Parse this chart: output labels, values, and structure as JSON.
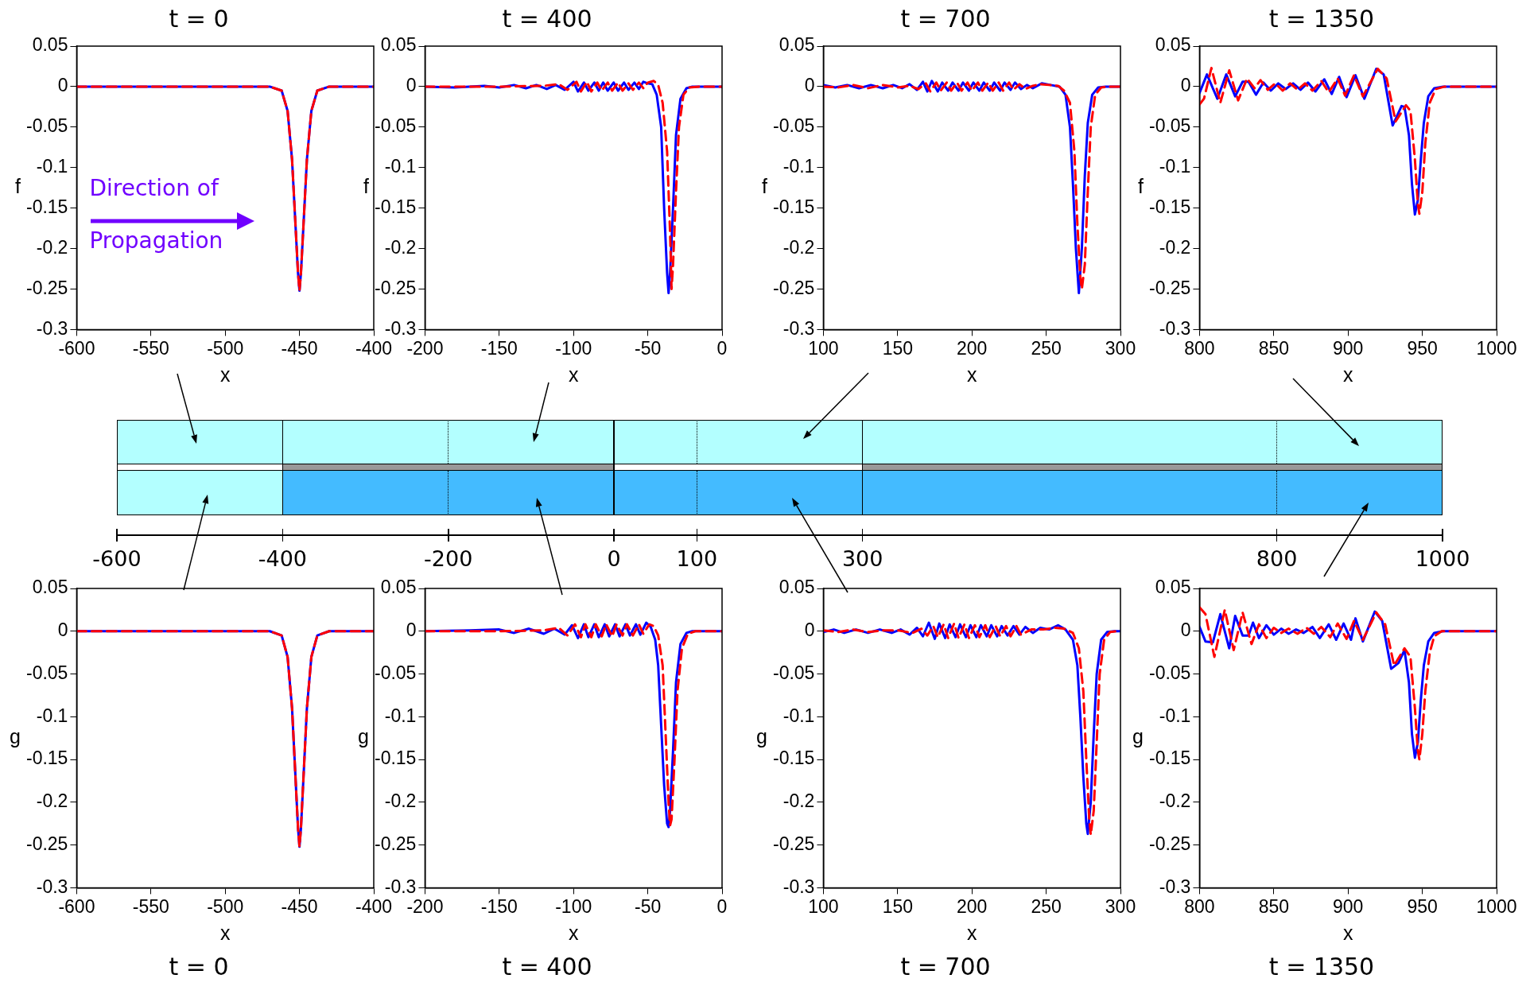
{
  "chart_data": [
    {
      "type": "line",
      "title": "t = 0",
      "xlabel": "x",
      "ylabel": "f",
      "xlim": [
        -600,
        -400
      ],
      "xticks": [
        -600,
        -550,
        -500,
        -450,
        -400
      ],
      "ylim": [
        -0.3,
        0.05
      ],
      "yticks": [
        -0.3,
        -0.25,
        -0.2,
        -0.15,
        -0.1,
        -0.05,
        0,
        0.05
      ],
      "grid": false,
      "annotations": [
        "Direction of",
        "Propagation"
      ],
      "series": [
        {
          "color": "#0000ff",
          "line_style": "solid",
          "x": [
            -600,
            -470,
            -462,
            -458,
            -455,
            -453,
            -451,
            -450,
            -449,
            -447,
            -445,
            -442,
            -438,
            -430,
            -400
          ],
          "values": [
            0,
            0,
            -0.005,
            -0.03,
            -0.09,
            -0.16,
            -0.23,
            -0.252,
            -0.23,
            -0.16,
            -0.09,
            -0.03,
            -0.005,
            0,
            0
          ]
        },
        {
          "color": "#ff0000",
          "line_style": "dashed",
          "x": [
            -600,
            -470,
            -462,
            -458,
            -455,
            -453,
            -451,
            -450,
            -449,
            -447,
            -445,
            -442,
            -438,
            -430,
            -400
          ],
          "values": [
            0,
            0,
            -0.005,
            -0.03,
            -0.09,
            -0.16,
            -0.23,
            -0.252,
            -0.23,
            -0.16,
            -0.09,
            -0.03,
            -0.005,
            0,
            0
          ]
        }
      ]
    },
    {
      "type": "line",
      "title": "t = 400",
      "xlabel": "x",
      "ylabel": "f",
      "xlim": [
        -200,
        0
      ],
      "xticks": [
        -200,
        -150,
        -100,
        -50,
        0
      ],
      "ylim": [
        -0.3,
        0.05
      ],
      "yticks": [
        -0.3,
        -0.25,
        -0.2,
        -0.15,
        -0.1,
        -0.05,
        0,
        0.05
      ],
      "grid": false,
      "series": [
        {
          "color": "#0000ff",
          "line_style": "solid",
          "x": [
            -200,
            -180,
            -160,
            -150,
            -140,
            -132,
            -125,
            -118,
            -112,
            -106,
            -100,
            -97,
            -93,
            -90,
            -86,
            -83,
            -80,
            -77,
            -73,
            -70,
            -66,
            -63,
            -59,
            -56,
            -53,
            -50,
            -47,
            -44,
            -41,
            -39,
            -37,
            -36,
            -35,
            -33,
            -31,
            -28,
            -24,
            -20,
            0
          ],
          "values": [
            0,
            -0.001,
            0.001,
            -0.001,
            0.002,
            -0.002,
            0.002,
            -0.003,
            0.002,
            -0.004,
            0.006,
            -0.006,
            0.005,
            -0.005,
            0.005,
            -0.005,
            0.005,
            -0.005,
            0.005,
            -0.005,
            0.005,
            -0.004,
            0.005,
            -0.003,
            0.006,
            0.004,
            0.003,
            -0.01,
            -0.05,
            -0.15,
            -0.23,
            -0.255,
            -0.23,
            -0.15,
            -0.06,
            -0.015,
            -0.002,
            0,
            0
          ]
        },
        {
          "color": "#ff0000",
          "line_style": "dashed",
          "x": [
            -200,
            -150,
            -120,
            -110,
            -104,
            -98,
            -95,
            -91,
            -88,
            -84,
            -81,
            -77,
            -74,
            -70,
            -67,
            -63,
            -60,
            -56,
            -53,
            -50,
            -46,
            -43,
            -40,
            -37,
            -35,
            -34,
            -33,
            -31,
            -29,
            -26,
            -22,
            -15,
            0
          ],
          "values": [
            0,
            0,
            0.001,
            0.003,
            -0.004,
            0.006,
            -0.006,
            0.006,
            -0.006,
            0.005,
            -0.005,
            0.005,
            -0.005,
            0.005,
            -0.005,
            0.004,
            -0.004,
            0.005,
            -0.002,
            0.005,
            0.007,
            0.002,
            -0.02,
            -0.08,
            -0.18,
            -0.25,
            -0.22,
            -0.13,
            -0.05,
            -0.01,
            -0.001,
            0,
            0
          ]
        }
      ]
    },
    {
      "type": "line",
      "title": "t = 700",
      "xlabel": "x",
      "ylabel": "f",
      "xlim": [
        100,
        300
      ],
      "xticks": [
        100,
        150,
        200,
        250,
        300
      ],
      "ylim": [
        -0.3,
        0.05
      ],
      "yticks": [
        -0.3,
        -0.25,
        -0.2,
        -0.15,
        -0.1,
        -0.05,
        0,
        0.05
      ],
      "grid": false,
      "series": [
        {
          "color": "#0000ff",
          "line_style": "solid",
          "x": [
            100,
            108,
            116,
            124,
            132,
            140,
            147,
            153,
            158,
            163,
            167,
            170,
            173,
            177,
            180,
            184,
            187,
            191,
            194,
            198,
            201,
            205,
            208,
            212,
            215,
            219,
            222,
            226,
            229,
            233,
            237,
            241,
            247,
            253,
            259,
            263,
            266,
            268,
            270,
            272,
            274,
            276,
            278,
            281,
            285,
            290,
            300
          ],
          "values": [
            0.002,
            -0.001,
            0.002,
            -0.002,
            0.002,
            -0.002,
            0.002,
            -0.002,
            0.003,
            -0.004,
            0.006,
            -0.006,
            0.007,
            -0.006,
            0.005,
            -0.005,
            0.005,
            -0.005,
            0.005,
            -0.005,
            0.005,
            -0.005,
            0.005,
            -0.005,
            0.005,
            -0.005,
            0.005,
            -0.004,
            0.005,
            -0.003,
            0.002,
            -0.002,
            0.004,
            0.002,
            0,
            -0.01,
            -0.05,
            -0.12,
            -0.2,
            -0.255,
            -0.2,
            -0.11,
            -0.045,
            -0.01,
            -0.001,
            0,
            0
          ]
        },
        {
          "color": "#ff0000",
          "line_style": "dashed",
          "x": [
            100,
            110,
            120,
            130,
            140,
            150,
            158,
            164,
            169,
            172,
            176,
            179,
            183,
            186,
            190,
            193,
            197,
            200,
            204,
            207,
            211,
            214,
            218,
            221,
            225,
            228,
            232,
            236,
            241,
            246,
            252,
            258,
            262,
            266,
            269,
            271,
            273,
            274,
            276,
            278,
            280,
            283,
            287,
            292,
            300
          ],
          "values": [
            0,
            -0.001,
            0.002,
            -0.002,
            0.002,
            -0.001,
            0.001,
            -0.003,
            0.004,
            -0.006,
            0.005,
            -0.005,
            0.005,
            -0.005,
            0.005,
            -0.005,
            0.005,
            -0.005,
            0.005,
            -0.005,
            0.005,
            -0.005,
            0.005,
            -0.005,
            0.005,
            -0.004,
            0.003,
            -0.003,
            0.001,
            0.003,
            0.002,
            0.001,
            -0.005,
            -0.02,
            -0.08,
            -0.17,
            -0.235,
            -0.25,
            -0.22,
            -0.13,
            -0.05,
            -0.01,
            -0.001,
            0,
            0
          ]
        }
      ]
    },
    {
      "type": "line",
      "title": "t = 1350",
      "xlabel": "x",
      "ylabel": "f",
      "xlim": [
        800,
        1000
      ],
      "xticks": [
        800,
        850,
        900,
        950,
        1000
      ],
      "ylim": [
        -0.3,
        0.05
      ],
      "yticks": [
        -0.3,
        -0.25,
        -0.2,
        -0.15,
        -0.1,
        -0.05,
        0,
        0.05
      ],
      "grid": false,
      "series": [
        {
          "color": "#0000ff",
          "line_style": "solid",
          "x": [
            800,
            805,
            812,
            818,
            824,
            829,
            833,
            838,
            843,
            848,
            853,
            858,
            863,
            868,
            873,
            878,
            884,
            889,
            894,
            899,
            905,
            911,
            919,
            924,
            930,
            936,
            938,
            941,
            943,
            945,
            947,
            949,
            951,
            954,
            958,
            964,
            1000
          ],
          "values": [
            -0.008,
            0.015,
            -0.015,
            0.015,
            -0.012,
            0.006,
            0.006,
            -0.01,
            0.005,
            -0.005,
            0.004,
            -0.003,
            0.004,
            -0.004,
            0.005,
            -0.006,
            0.009,
            -0.009,
            0.012,
            -0.013,
            0.014,
            -0.015,
            0.022,
            0.015,
            -0.048,
            -0.024,
            -0.025,
            -0.06,
            -0.12,
            -0.158,
            -0.14,
            -0.09,
            -0.045,
            -0.012,
            -0.002,
            0,
            0
          ]
        },
        {
          "color": "#ff0000",
          "line_style": "dashed",
          "x": [
            800,
            803,
            808,
            814,
            820,
            826,
            832,
            837,
            841,
            846,
            851,
            856,
            861,
            866,
            871,
            876,
            882,
            887,
            893,
            898,
            904,
            910,
            920,
            926,
            932,
            939,
            942,
            945,
            947,
            948,
            950,
            952,
            955,
            959,
            965,
            1000
          ],
          "values": [
            -0.022,
            -0.015,
            0.023,
            -0.02,
            0.02,
            -0.017,
            0.01,
            -0.002,
            0.008,
            -0.004,
            0.004,
            -0.005,
            0.004,
            -0.004,
            0.004,
            -0.005,
            0.007,
            -0.007,
            0.01,
            -0.011,
            0.014,
            -0.012,
            0.022,
            0.01,
            -0.043,
            -0.023,
            -0.03,
            -0.09,
            -0.145,
            -0.157,
            -0.13,
            -0.07,
            -0.02,
            -0.003,
            0,
            0
          ]
        }
      ]
    },
    {
      "type": "other",
      "annotations": [
        "-600",
        "-400",
        "-200",
        "0",
        "100",
        "300",
        "800",
        "1000"
      ]
    },
    {
      "type": "line",
      "title": "t = 0",
      "xlabel": "x",
      "ylabel": "g",
      "xlim": [
        -600,
        -400
      ],
      "xticks": [
        -600,
        -550,
        -500,
        -450,
        -400
      ],
      "ylim": [
        -0.3,
        0.05
      ],
      "yticks": [
        -0.3,
        -0.25,
        -0.2,
        -0.15,
        -0.1,
        -0.05,
        0,
        0.05
      ],
      "grid": false,
      "series": [
        {
          "color": "#0000ff",
          "line_style": "solid",
          "x": [
            -600,
            -470,
            -462,
            -458,
            -455,
            -453,
            -451,
            -450,
            -449,
            -447,
            -445,
            -442,
            -438,
            -430,
            -400
          ],
          "values": [
            0,
            0,
            -0.005,
            -0.03,
            -0.09,
            -0.16,
            -0.23,
            -0.252,
            -0.23,
            -0.16,
            -0.09,
            -0.03,
            -0.005,
            0,
            0
          ]
        },
        {
          "color": "#ff0000",
          "line_style": "dashed",
          "x": [
            -600,
            -470,
            -462,
            -458,
            -455,
            -453,
            -451,
            -450,
            -449,
            -447,
            -445,
            -442,
            -438,
            -430,
            -400
          ],
          "values": [
            0,
            0,
            -0.005,
            -0.03,
            -0.09,
            -0.16,
            -0.23,
            -0.252,
            -0.23,
            -0.16,
            -0.09,
            -0.03,
            -0.005,
            0,
            0
          ]
        }
      ]
    },
    {
      "type": "line",
      "title": "t = 400",
      "xlabel": "x",
      "ylabel": "g",
      "xlim": [
        -200,
        0
      ],
      "xticks": [
        -200,
        -150,
        -100,
        -50,
        0
      ],
      "ylim": [
        -0.3,
        0.05
      ],
      "yticks": [
        -0.3,
        -0.25,
        -0.2,
        -0.15,
        -0.1,
        -0.05,
        0,
        0.05
      ],
      "grid": false,
      "series": [
        {
          "color": "#0000ff",
          "line_style": "solid",
          "x": [
            -200,
            -170,
            -150,
            -140,
            -130,
            -120,
            -113,
            -106,
            -101,
            -97,
            -93,
            -90,
            -86,
            -83,
            -79,
            -76,
            -72,
            -69,
            -65,
            -62,
            -58,
            -55,
            -51,
            -48,
            -45,
            -43,
            -41,
            -39,
            -37,
            -36,
            -35,
            -33,
            -31,
            -28,
            -24,
            -20,
            0
          ],
          "values": [
            0,
            0.001,
            0.002,
            -0.002,
            0.003,
            -0.003,
            0.003,
            -0.004,
            0.007,
            -0.008,
            0.008,
            -0.007,
            0.008,
            -0.007,
            0.008,
            -0.006,
            0.008,
            -0.006,
            0.008,
            -0.005,
            0.008,
            -0.004,
            0.01,
            0.005,
            -0.01,
            -0.04,
            -0.11,
            -0.18,
            -0.225,
            -0.229,
            -0.21,
            -0.14,
            -0.06,
            -0.015,
            -0.002,
            0,
            0
          ]
        },
        {
          "color": "#ff0000",
          "line_style": "dashed",
          "x": [
            -200,
            -150,
            -120,
            -110,
            -104,
            -99,
            -95,
            -92,
            -88,
            -85,
            -81,
            -78,
            -74,
            -71,
            -67,
            -64,
            -60,
            -56,
            -53,
            -49,
            -46,
            -43,
            -40,
            -38,
            -36,
            -35,
            -34,
            -32,
            -30,
            -27,
            -23,
            -18,
            0
          ],
          "values": [
            0,
            0,
            0.001,
            0.004,
            -0.005,
            0.008,
            -0.007,
            0.008,
            -0.007,
            0.008,
            -0.006,
            0.008,
            -0.006,
            0.008,
            -0.005,
            0.008,
            -0.005,
            0.008,
            -0.003,
            0.008,
            0.006,
            -0.005,
            -0.04,
            -0.12,
            -0.2,
            -0.227,
            -0.22,
            -0.15,
            -0.07,
            -0.02,
            -0.003,
            0,
            0
          ]
        }
      ]
    },
    {
      "type": "line",
      "title": "t = 700",
      "xlabel": "x",
      "ylabel": "g",
      "xlim": [
        100,
        300
      ],
      "xticks": [
        100,
        150,
        200,
        250,
        300
      ],
      "ylim": [
        -0.3,
        0.05
      ],
      "yticks": [
        -0.3,
        -0.25,
        -0.2,
        -0.15,
        -0.1,
        -0.05,
        0,
        0.05
      ],
      "grid": false,
      "series": [
        {
          "color": "#0000ff",
          "line_style": "solid",
          "x": [
            100,
            107,
            114,
            122,
            130,
            138,
            146,
            152,
            158,
            163,
            167,
            171,
            175,
            178,
            182,
            185,
            189,
            192,
            196,
            199,
            203,
            206,
            210,
            213,
            217,
            220,
            224,
            228,
            232,
            236,
            241,
            246,
            252,
            258,
            263,
            268,
            271,
            273,
            275,
            277,
            278,
            280,
            282,
            284,
            287,
            291,
            296,
            300
          ],
          "values": [
            -0.001,
            0.002,
            -0.002,
            0.002,
            -0.002,
            0.002,
            -0.002,
            0.002,
            -0.004,
            0.004,
            -0.006,
            0.01,
            -0.009,
            0.009,
            -0.008,
            0.008,
            -0.007,
            0.008,
            -0.007,
            0.007,
            -0.007,
            0.007,
            -0.006,
            0.007,
            -0.006,
            0.006,
            -0.005,
            0.006,
            -0.004,
            0.005,
            -0.002,
            0.004,
            0.002,
            0.007,
            0.002,
            -0.01,
            -0.04,
            -0.1,
            -0.17,
            -0.225,
            -0.237,
            -0.2,
            -0.12,
            -0.05,
            -0.01,
            -0.001,
            0,
            0
          ]
        },
        {
          "color": "#ff0000",
          "line_style": "dashed",
          "x": [
            100,
            110,
            120,
            130,
            140,
            150,
            160,
            166,
            170,
            174,
            177,
            181,
            184,
            188,
            191,
            195,
            198,
            202,
            205,
            209,
            212,
            216,
            219,
            223,
            226,
            230,
            233,
            240,
            248,
            256,
            262,
            268,
            272,
            275,
            277,
            279,
            280,
            282,
            284,
            286,
            289,
            293,
            298,
            300
          ],
          "values": [
            0.001,
            -0.001,
            0.002,
            -0.001,
            0.001,
            0.001,
            -0.002,
            0.003,
            -0.005,
            0.006,
            -0.007,
            0.008,
            -0.008,
            0.009,
            -0.008,
            0.008,
            -0.008,
            0.007,
            -0.007,
            0.007,
            -0.007,
            0.006,
            -0.006,
            0.006,
            -0.006,
            0.006,
            -0.004,
            0.002,
            0.002,
            0.004,
            0.003,
            -0.002,
            -0.02,
            -0.07,
            -0.15,
            -0.22,
            -0.238,
            -0.21,
            -0.13,
            -0.05,
            -0.01,
            -0.001,
            0,
            0
          ]
        }
      ]
    },
    {
      "type": "line",
      "title": "t = 1350",
      "xlabel": "x",
      "ylabel": "g",
      "xlim": [
        800,
        1000
      ],
      "xticks": [
        800,
        850,
        900,
        950,
        1000
      ],
      "ylim": [
        -0.3,
        0.05
      ],
      "yticks": [
        -0.3,
        -0.25,
        -0.2,
        -0.15,
        -0.1,
        -0.05,
        0,
        0.05
      ],
      "grid": false,
      "series": [
        {
          "color": "#0000ff",
          "line_style": "solid",
          "x": [
            800,
            804,
            809,
            814,
            820,
            824,
            829,
            833,
            836,
            840,
            845,
            850,
            855,
            860,
            865,
            870,
            876,
            881,
            887,
            892,
            897,
            902,
            905,
            910,
            918,
            923,
            929,
            934,
            938,
            941,
            943,
            945,
            947,
            949,
            951,
            954,
            958,
            964,
            1000
          ],
          "values": [
            0.005,
            -0.012,
            -0.013,
            0.02,
            -0.02,
            0.018,
            -0.005,
            -0.005,
            0.01,
            -0.008,
            0.007,
            -0.004,
            0.003,
            -0.003,
            0.002,
            -0.002,
            0.005,
            -0.008,
            0.008,
            -0.01,
            0.009,
            -0.01,
            0.015,
            -0.012,
            0.023,
            0.012,
            -0.044,
            -0.037,
            -0.022,
            -0.06,
            -0.12,
            -0.148,
            -0.13,
            -0.08,
            -0.04,
            -0.012,
            -0.002,
            0,
            0
          ]
        },
        {
          "color": "#ff0000",
          "line_style": "dashed",
          "x": [
            800,
            804,
            810,
            817,
            823,
            829,
            835,
            840,
            845,
            850,
            855,
            860,
            866,
            872,
            877,
            882,
            888,
            893,
            899,
            904,
            910,
            919,
            925,
            931,
            938,
            942,
            945,
            947,
            948,
            950,
            952,
            955,
            958,
            963,
            1000
          ],
          "values": [
            0.028,
            0.02,
            -0.03,
            0.025,
            -0.022,
            0.022,
            -0.015,
            0.008,
            -0.008,
            0.004,
            -0.002,
            0.003,
            -0.003,
            0.004,
            -0.003,
            0.005,
            -0.007,
            0.009,
            -0.009,
            0.012,
            -0.01,
            0.022,
            0.008,
            -0.04,
            -0.02,
            -0.03,
            -0.09,
            -0.14,
            -0.15,
            -0.12,
            -0.07,
            -0.025,
            -0.006,
            0,
            0
          ]
        }
      ]
    }
  ]
}
